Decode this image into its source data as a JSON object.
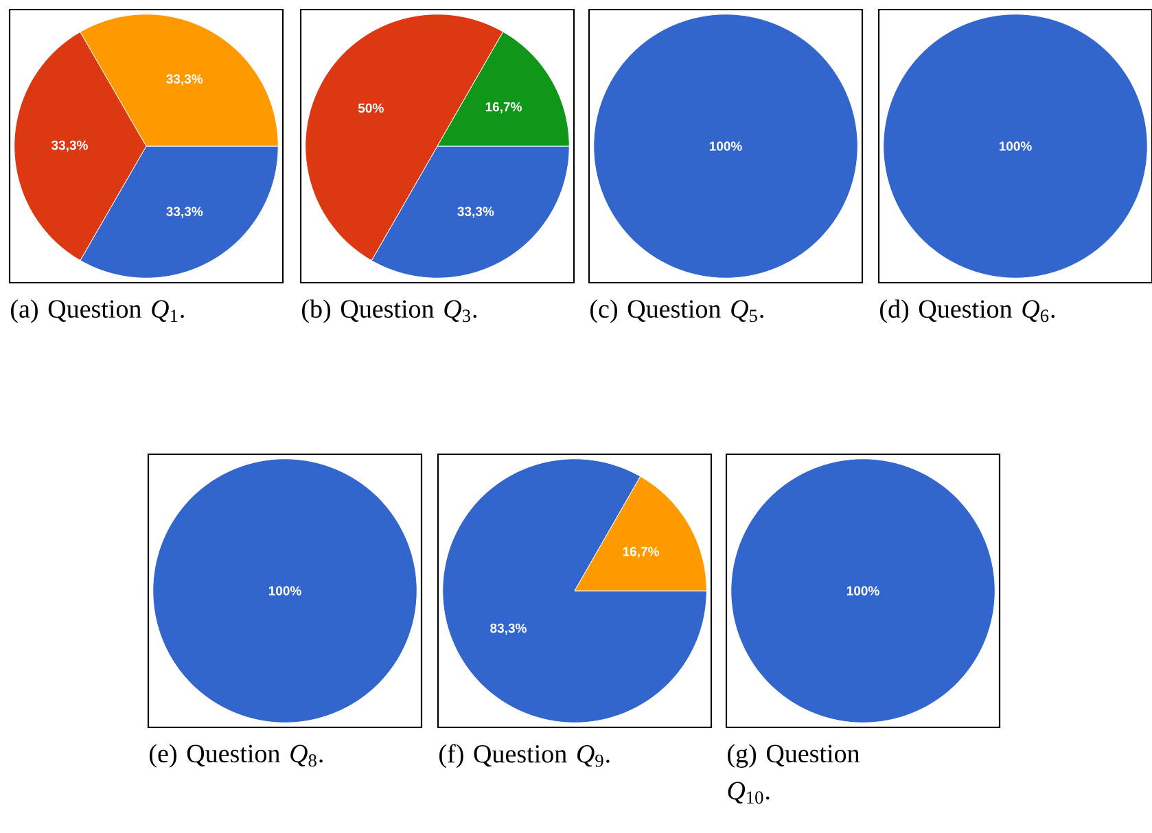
{
  "chart_data": [
    {
      "type": "pie",
      "categories": [
        null,
        null,
        null
      ],
      "values": [
        33.3,
        33.3,
        33.3
      ],
      "colors": [
        "#3366cc",
        "#dc3912",
        "#ff9900"
      ],
      "value_labels": [
        "33,3%",
        "33,3%",
        "33,3%"
      ],
      "annotations": [
        "(a) Question *Q*$_{1}$."
      ]
    },
    {
      "type": "pie",
      "categories": [
        null,
        null,
        null
      ],
      "values": [
        33.3,
        50,
        16.7
      ],
      "colors": [
        "#3366cc",
        "#dc3912",
        "#109618"
      ],
      "value_labels": [
        "33,3%",
        "50%",
        "16,7%"
      ],
      "annotations": [
        "(b) Question *Q*$_{3}$."
      ]
    },
    {
      "type": "pie",
      "categories": [
        null
      ],
      "values": [
        100
      ],
      "colors": [
        "#3366cc"
      ],
      "value_labels": [
        "100%"
      ],
      "annotations": [
        "(c) Question *Q*$_{5}$."
      ]
    },
    {
      "type": "pie",
      "categories": [
        null
      ],
      "values": [
        100
      ],
      "colors": [
        "#3366cc"
      ],
      "value_labels": [
        "100%"
      ],
      "annotations": [
        "(d) Question *Q*$_{6}$."
      ]
    },
    {
      "type": "pie",
      "categories": [
        null
      ],
      "values": [
        100
      ],
      "colors": [
        "#3366cc"
      ],
      "value_labels": [
        "100%"
      ],
      "annotations": [
        "(e) Question *Q*$_{8}$."
      ]
    },
    {
      "type": "pie",
      "categories": [
        null,
        null
      ],
      "values": [
        83.3,
        16.7
      ],
      "colors": [
        "#3366cc",
        "#ff9900"
      ],
      "value_labels": [
        "83,3%",
        "16,7%"
      ],
      "annotations": [
        "(f) Question *Q*$_{9}$."
      ]
    },
    {
      "type": "pie",
      "categories": [
        null
      ],
      "values": [
        100
      ],
      "colors": [
        "#3366cc"
      ],
      "value_labels": [
        "100%"
      ],
      "annotations": [
        "(g) Question *Q*$_{10}$."
      ]
    }
  ]
}
